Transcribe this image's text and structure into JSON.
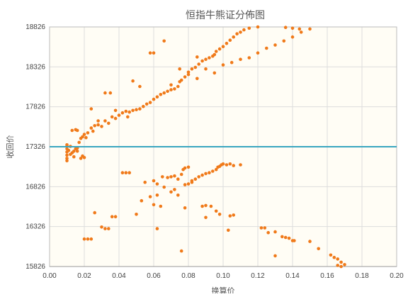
{
  "chart_data": {
    "type": "scatter",
    "title": "恒指牛熊证分佈图",
    "xlabel": "换算价",
    "ylabel": "收回价",
    "xlim": [
      0,
      0.2
    ],
    "ylim": [
      15826,
      18826
    ],
    "x_ticks": [
      "0.00",
      "0.02",
      "0.04",
      "0.06",
      "0.08",
      "0.10",
      "0.12",
      "0.14",
      "0.16",
      "0.18",
      "0.20"
    ],
    "y_ticks": [
      "15826",
      "16326",
      "16826",
      "17326",
      "17826",
      "18326",
      "18826"
    ],
    "reference_line": {
      "y": 17326,
      "color": "#3aa6c0"
    },
    "colors": {
      "points": "#f07a1a",
      "background": "#fffdf5"
    },
    "series": [
      {
        "values": [
          [
            0.01,
            17350
          ],
          [
            0.01,
            17300
          ],
          [
            0.01,
            17260
          ],
          [
            0.01,
            17220
          ],
          [
            0.01,
            17180
          ],
          [
            0.01,
            17150
          ],
          [
            0.011,
            17280
          ],
          [
            0.012,
            17330
          ],
          [
            0.013,
            17250
          ],
          [
            0.014,
            17200
          ],
          [
            0.015,
            17300
          ],
          [
            0.016,
            17270
          ],
          [
            0.017,
            17380
          ],
          [
            0.018,
            17430
          ],
          [
            0.019,
            17450
          ],
          [
            0.02,
            17480
          ],
          [
            0.021,
            17440
          ],
          [
            0.013,
            17530
          ],
          [
            0.015,
            17540
          ],
          [
            0.016,
            17530
          ],
          [
            0.019,
            17210
          ],
          [
            0.02,
            17190
          ],
          [
            0.022,
            17500
          ],
          [
            0.024,
            17560
          ],
          [
            0.025,
            17520
          ],
          [
            0.026,
            17590
          ],
          [
            0.028,
            17600
          ],
          [
            0.03,
            17580
          ],
          [
            0.032,
            17650
          ],
          [
            0.034,
            17620
          ],
          [
            0.036,
            17700
          ],
          [
            0.038,
            17680
          ],
          [
            0.04,
            17720
          ],
          [
            0.042,
            17750
          ],
          [
            0.044,
            17770
          ],
          [
            0.046,
            17760
          ],
          [
            0.048,
            17780
          ],
          [
            0.05,
            17790
          ],
          [
            0.052,
            17800
          ],
          [
            0.054,
            17830
          ],
          [
            0.056,
            17860
          ],
          [
            0.058,
            17880
          ],
          [
            0.06,
            17920
          ],
          [
            0.062,
            17950
          ],
          [
            0.064,
            17980
          ],
          [
            0.066,
            18000
          ],
          [
            0.068,
            18020
          ],
          [
            0.07,
            18040
          ],
          [
            0.072,
            18050
          ],
          [
            0.074,
            18080
          ],
          [
            0.075,
            18140
          ],
          [
            0.076,
            18160
          ],
          [
            0.078,
            18200
          ],
          [
            0.08,
            18260
          ],
          [
            0.082,
            18300
          ],
          [
            0.084,
            18320
          ],
          [
            0.086,
            18360
          ],
          [
            0.088,
            18400
          ],
          [
            0.09,
            18420
          ],
          [
            0.092,
            18440
          ],
          [
            0.094,
            18460
          ],
          [
            0.095,
            18480
          ],
          [
            0.096,
            18520
          ],
          [
            0.098,
            18550
          ],
          [
            0.1,
            18580
          ],
          [
            0.102,
            18620
          ],
          [
            0.104,
            18660
          ],
          [
            0.106,
            18700
          ],
          [
            0.108,
            18740
          ],
          [
            0.11,
            18760
          ],
          [
            0.112,
            18790
          ],
          [
            0.115,
            18810
          ],
          [
            0.12,
            18826
          ],
          [
            0.08,
            18230
          ],
          [
            0.085,
            18180
          ],
          [
            0.09,
            18300
          ],
          [
            0.095,
            18250
          ],
          [
            0.1,
            18350
          ],
          [
            0.105,
            18380
          ],
          [
            0.11,
            18420
          ],
          [
            0.115,
            18440
          ],
          [
            0.12,
            18500
          ],
          [
            0.125,
            18560
          ],
          [
            0.13,
            18600
          ],
          [
            0.135,
            18650
          ],
          [
            0.14,
            18700
          ],
          [
            0.145,
            18760
          ],
          [
            0.15,
            18800
          ],
          [
            0.136,
            18820
          ],
          [
            0.14,
            18810
          ],
          [
            0.144,
            18800
          ],
          [
            0.032,
            18000
          ],
          [
            0.035,
            18000
          ],
          [
            0.048,
            18150
          ],
          [
            0.052,
            18080
          ],
          [
            0.058,
            18500
          ],
          [
            0.06,
            18500
          ],
          [
            0.066,
            18650
          ],
          [
            0.024,
            17800
          ],
          [
            0.028,
            17650
          ],
          [
            0.038,
            17780
          ],
          [
            0.045,
            17700
          ],
          [
            0.07,
            18100
          ],
          [
            0.075,
            18300
          ],
          [
            0.085,
            18450
          ],
          [
            0.01,
            17330
          ],
          [
            0.012,
            17230
          ],
          [
            0.014,
            17270
          ],
          [
            0.016,
            17310
          ],
          [
            0.018,
            17180
          ],
          [
            0.042,
            17000
          ],
          [
            0.044,
            17000
          ],
          [
            0.046,
            17000
          ],
          [
            0.055,
            16880
          ],
          [
            0.06,
            16900
          ],
          [
            0.062,
            16860
          ],
          [
            0.065,
            16950
          ],
          [
            0.068,
            16940
          ],
          [
            0.07,
            16950
          ],
          [
            0.072,
            16960
          ],
          [
            0.074,
            16920
          ],
          [
            0.076,
            16980
          ],
          [
            0.077,
            17040
          ],
          [
            0.078,
            17060
          ],
          [
            0.08,
            17070
          ],
          [
            0.082,
            16900
          ],
          [
            0.084,
            16920
          ],
          [
            0.086,
            16950
          ],
          [
            0.088,
            16970
          ],
          [
            0.09,
            16990
          ],
          [
            0.092,
            17000
          ],
          [
            0.094,
            17020
          ],
          [
            0.096,
            17040
          ],
          [
            0.097,
            17070
          ],
          [
            0.098,
            17080
          ],
          [
            0.099,
            17100
          ],
          [
            0.1,
            17110
          ],
          [
            0.102,
            17100
          ],
          [
            0.104,
            17110
          ],
          [
            0.106,
            17090
          ],
          [
            0.11,
            17100
          ],
          [
            0.066,
            16820
          ],
          [
            0.07,
            16760
          ],
          [
            0.072,
            16790
          ],
          [
            0.074,
            16720
          ],
          [
            0.078,
            16850
          ],
          [
            0.08,
            16860
          ],
          [
            0.082,
            16880
          ],
          [
            0.058,
            16700
          ],
          [
            0.06,
            16600
          ],
          [
            0.064,
            16580
          ],
          [
            0.05,
            16480
          ],
          [
            0.053,
            16650
          ],
          [
            0.062,
            16720
          ],
          [
            0.088,
            16580
          ],
          [
            0.09,
            16590
          ],
          [
            0.093,
            16580
          ],
          [
            0.096,
            16520
          ],
          [
            0.098,
            16480
          ],
          [
            0.106,
            16470
          ],
          [
            0.104,
            16460
          ],
          [
            0.09,
            16440
          ],
          [
            0.078,
            16560
          ],
          [
            0.036,
            16450
          ],
          [
            0.038,
            16450
          ],
          [
            0.026,
            16500
          ],
          [
            0.03,
            16320
          ],
          [
            0.032,
            16300
          ],
          [
            0.034,
            16300
          ],
          [
            0.02,
            16170
          ],
          [
            0.022,
            16170
          ],
          [
            0.024,
            16170
          ],
          [
            0.062,
            16300
          ],
          [
            0.103,
            16280
          ],
          [
            0.122,
            16310
          ],
          [
            0.124,
            16310
          ],
          [
            0.126,
            16250
          ],
          [
            0.13,
            16260
          ],
          [
            0.134,
            16200
          ],
          [
            0.136,
            16190
          ],
          [
            0.138,
            16180
          ],
          [
            0.14,
            16150
          ],
          [
            0.141,
            16150
          ],
          [
            0.13,
            15960
          ],
          [
            0.076,
            16020
          ],
          [
            0.15,
            16140
          ],
          [
            0.155,
            16050
          ],
          [
            0.162,
            15970
          ],
          [
            0.164,
            15940
          ],
          [
            0.166,
            15920
          ],
          [
            0.168,
            15880
          ],
          [
            0.17,
            15850
          ],
          [
            0.168,
            15826
          ],
          [
            0.166,
            15840
          ]
        ]
      }
    ]
  }
}
